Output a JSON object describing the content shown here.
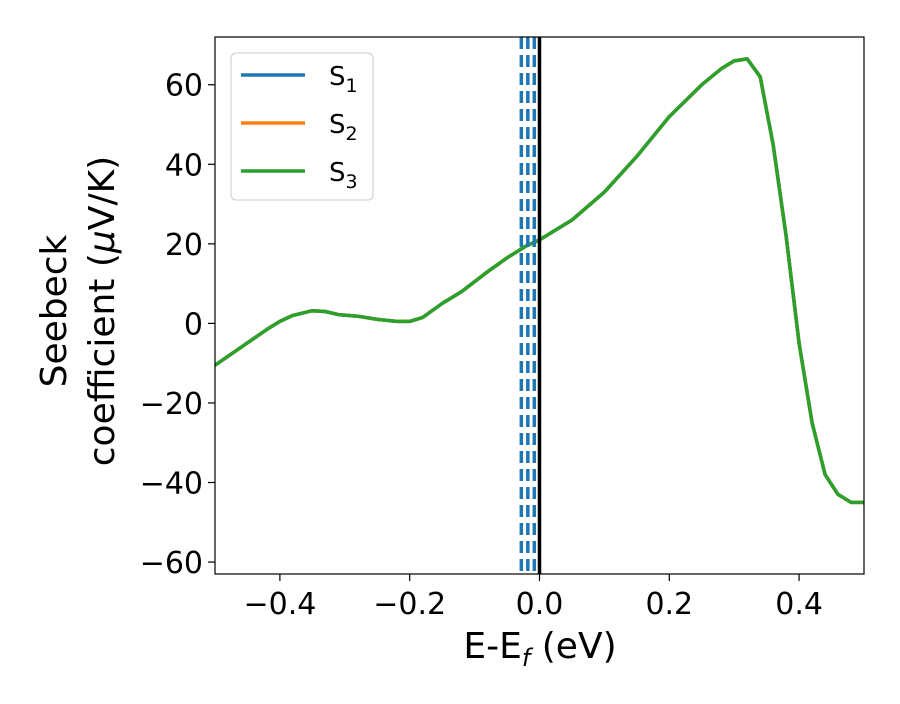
{
  "chart_data": {
    "type": "line",
    "title": "",
    "xlabel": {
      "main": "E-E",
      "sub": "f",
      "rest": " (eV)"
    },
    "ylabel": {
      "line1": "Seebeck",
      "line2_prefix": "coefficient  (",
      "mu": "μ",
      "line2_suffix": "V/K)"
    },
    "xlim": [
      -0.5,
      0.5
    ],
    "ylim": [
      -63,
      72
    ],
    "xticks": [
      -0.4,
      -0.2,
      0.0,
      0.2,
      0.4
    ],
    "xtick_labels": [
      "−0.4",
      "−0.2",
      "0.0",
      "0.2",
      "0.4"
    ],
    "yticks": [
      -60,
      -40,
      -20,
      0,
      20,
      40,
      60
    ],
    "ytick_labels": [
      "−60",
      "−40",
      "−20",
      "0",
      "20",
      "40",
      "60"
    ],
    "grid": false,
    "legend_position": "top-left",
    "legend": [
      {
        "main": "S",
        "sub": "1",
        "color": "#1f77b4"
      },
      {
        "main": "S",
        "sub": "2",
        "color": "#ff7f0e"
      },
      {
        "main": "S",
        "sub": "3",
        "color": "#2ca02c"
      }
    ],
    "vertical_lines": [
      {
        "x": -0.028,
        "color": "#1f77b4",
        "style": "dashed"
      },
      {
        "x": -0.018,
        "color": "#1f77b4",
        "style": "dashed"
      },
      {
        "x": -0.008,
        "color": "#1f77b4",
        "style": "dashed"
      },
      {
        "x": 0.0,
        "color": "#000000",
        "style": "solid"
      }
    ],
    "series": [
      {
        "name": "S₁",
        "color": "#1f77b4",
        "x": [
          -0.5,
          -0.46,
          -0.42,
          -0.4,
          -0.38,
          -0.35,
          -0.33,
          -0.31,
          -0.28,
          -0.25,
          -0.22,
          -0.2,
          -0.18,
          -0.15,
          -0.12,
          -0.08,
          -0.05,
          -0.02,
          0.0,
          0.05,
          0.1,
          0.15,
          0.2,
          0.25,
          0.28,
          0.3,
          0.32,
          0.34,
          0.36,
          0.38,
          0.4,
          0.42,
          0.44,
          0.46,
          0.48,
          0.5
        ],
        "y": [
          -10.5,
          -6,
          -1.5,
          0.5,
          2,
          3.2,
          3,
          2.2,
          1.8,
          1,
          0.5,
          0.5,
          1.5,
          5,
          8,
          13,
          16.5,
          19.5,
          21,
          26,
          33,
          42,
          52,
          60,
          64,
          66,
          66.5,
          62,
          45,
          22,
          -5,
          -25,
          -38,
          -43,
          -45,
          -45
        ]
      },
      {
        "name": "S₂",
        "color": "#ff7f0e",
        "x": [
          -0.5,
          -0.46,
          -0.42,
          -0.4,
          -0.38,
          -0.35,
          -0.33,
          -0.31,
          -0.28,
          -0.25,
          -0.22,
          -0.2,
          -0.18,
          -0.15,
          -0.12,
          -0.08,
          -0.05,
          -0.02,
          0.0,
          0.05,
          0.1,
          0.15,
          0.2,
          0.25,
          0.28,
          0.3,
          0.32,
          0.34,
          0.36,
          0.38,
          0.4,
          0.42,
          0.44,
          0.46,
          0.48,
          0.5
        ],
        "y": [
          -10.5,
          -6,
          -1.5,
          0.5,
          2,
          3.2,
          3,
          2.2,
          1.8,
          1,
          0.5,
          0.5,
          1.5,
          5,
          8,
          13,
          16.5,
          19.5,
          21,
          26,
          33,
          42,
          52,
          60,
          64,
          66,
          66.5,
          62,
          45,
          22,
          -5,
          -25,
          -38,
          -43,
          -45,
          -45
        ]
      },
      {
        "name": "S₃",
        "color": "#2ca02c",
        "x": [
          -0.5,
          -0.46,
          -0.42,
          -0.4,
          -0.38,
          -0.35,
          -0.33,
          -0.31,
          -0.28,
          -0.25,
          -0.22,
          -0.2,
          -0.18,
          -0.15,
          -0.12,
          -0.08,
          -0.05,
          -0.02,
          0.0,
          0.05,
          0.1,
          0.15,
          0.2,
          0.25,
          0.28,
          0.3,
          0.32,
          0.34,
          0.36,
          0.38,
          0.4,
          0.42,
          0.44,
          0.46,
          0.48,
          0.5
        ],
        "y": [
          -10.5,
          -6,
          -1.5,
          0.5,
          2,
          3.2,
          3,
          2.2,
          1.8,
          1,
          0.5,
          0.5,
          1.5,
          5,
          8,
          13,
          16.5,
          19.5,
          21,
          26,
          33,
          42,
          52,
          60,
          64,
          66,
          66.5,
          62,
          45,
          22,
          -5,
          -25,
          -38,
          -43,
          -45,
          -45
        ]
      }
    ]
  }
}
